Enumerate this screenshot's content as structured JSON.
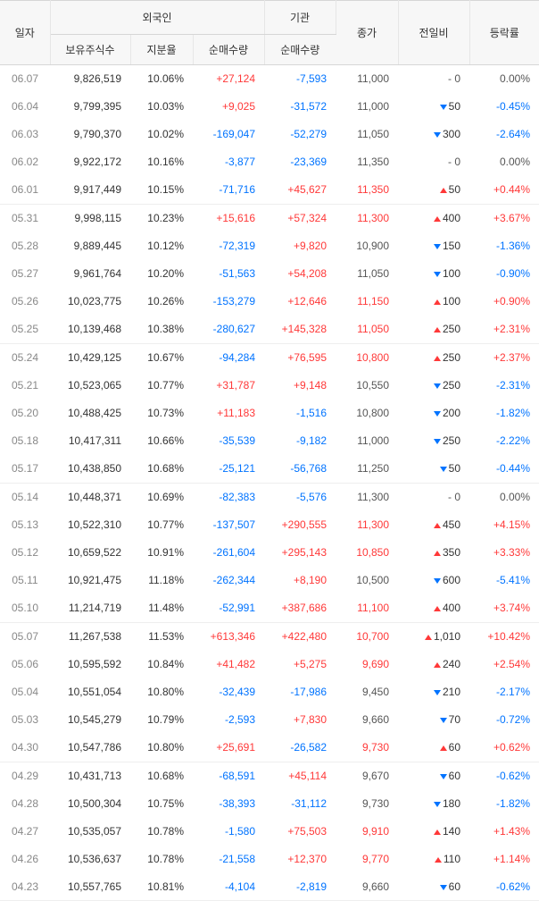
{
  "headers": {
    "date": "일자",
    "foreign": "외국인",
    "inst": "기관",
    "close": "종가",
    "change": "전일비",
    "rate": "등락률",
    "hold": "보유주식수",
    "ratio": "지분율",
    "net": "순매수량",
    "net2": "순매수량"
  },
  "groups": [
    [
      {
        "date": "06.07",
        "hold": "9,826,519",
        "ratio": "10.06%",
        "n1": "+27,124",
        "n1c": "pos",
        "n2": "-7,593",
        "n2c": "neg",
        "close": "11,000",
        "cc": "flat",
        "chg": "0",
        "dir": "flat",
        "rate": "0.00%",
        "rc": "flat"
      },
      {
        "date": "06.04",
        "hold": "9,799,395",
        "ratio": "10.03%",
        "n1": "+9,025",
        "n1c": "pos",
        "n2": "-31,572",
        "n2c": "neg",
        "close": "11,000",
        "cc": "flat",
        "chg": "50",
        "dir": "down",
        "rate": "-0.45%",
        "rc": "neg"
      },
      {
        "date": "06.03",
        "hold": "9,790,370",
        "ratio": "10.02%",
        "n1": "-169,047",
        "n1c": "neg",
        "n2": "-52,279",
        "n2c": "neg",
        "close": "11,050",
        "cc": "flat",
        "chg": "300",
        "dir": "down",
        "rate": "-2.64%",
        "rc": "neg"
      },
      {
        "date": "06.02",
        "hold": "9,922,172",
        "ratio": "10.16%",
        "n1": "-3,877",
        "n1c": "neg",
        "n2": "-23,369",
        "n2c": "neg",
        "close": "11,350",
        "cc": "flat",
        "chg": "0",
        "dir": "flat",
        "rate": "0.00%",
        "rc": "flat"
      },
      {
        "date": "06.01",
        "hold": "9,917,449",
        "ratio": "10.15%",
        "n1": "-71,716",
        "n1c": "neg",
        "n2": "+45,627",
        "n2c": "pos",
        "close": "11,350",
        "cc": "pos",
        "chg": "50",
        "dir": "up",
        "rate": "+0.44%",
        "rc": "pos"
      }
    ],
    [
      {
        "date": "05.31",
        "hold": "9,998,115",
        "ratio": "10.23%",
        "n1": "+15,616",
        "n1c": "pos",
        "n2": "+57,324",
        "n2c": "pos",
        "close": "11,300",
        "cc": "pos",
        "chg": "400",
        "dir": "up",
        "rate": "+3.67%",
        "rc": "pos"
      },
      {
        "date": "05.28",
        "hold": "9,889,445",
        "ratio": "10.12%",
        "n1": "-72,319",
        "n1c": "neg",
        "n2": "+9,820",
        "n2c": "pos",
        "close": "10,900",
        "cc": "flat",
        "chg": "150",
        "dir": "down",
        "rate": "-1.36%",
        "rc": "neg"
      },
      {
        "date": "05.27",
        "hold": "9,961,764",
        "ratio": "10.20%",
        "n1": "-51,563",
        "n1c": "neg",
        "n2": "+54,208",
        "n2c": "pos",
        "close": "11,050",
        "cc": "flat",
        "chg": "100",
        "dir": "down",
        "rate": "-0.90%",
        "rc": "neg"
      },
      {
        "date": "05.26",
        "hold": "10,023,775",
        "ratio": "10.26%",
        "n1": "-153,279",
        "n1c": "neg",
        "n2": "+12,646",
        "n2c": "pos",
        "close": "11,150",
        "cc": "pos",
        "chg": "100",
        "dir": "up",
        "rate": "+0.90%",
        "rc": "pos"
      },
      {
        "date": "05.25",
        "hold": "10,139,468",
        "ratio": "10.38%",
        "n1": "-280,627",
        "n1c": "neg",
        "n2": "+145,328",
        "n2c": "pos",
        "close": "11,050",
        "cc": "pos",
        "chg": "250",
        "dir": "up",
        "rate": "+2.31%",
        "rc": "pos"
      }
    ],
    [
      {
        "date": "05.24",
        "hold": "10,429,125",
        "ratio": "10.67%",
        "n1": "-94,284",
        "n1c": "neg",
        "n2": "+76,595",
        "n2c": "pos",
        "close": "10,800",
        "cc": "pos",
        "chg": "250",
        "dir": "up",
        "rate": "+2.37%",
        "rc": "pos"
      },
      {
        "date": "05.21",
        "hold": "10,523,065",
        "ratio": "10.77%",
        "n1": "+31,787",
        "n1c": "pos",
        "n2": "+9,148",
        "n2c": "pos",
        "close": "10,550",
        "cc": "flat",
        "chg": "250",
        "dir": "down",
        "rate": "-2.31%",
        "rc": "neg"
      },
      {
        "date": "05.20",
        "hold": "10,488,425",
        "ratio": "10.73%",
        "n1": "+11,183",
        "n1c": "pos",
        "n2": "-1,516",
        "n2c": "neg",
        "close": "10,800",
        "cc": "flat",
        "chg": "200",
        "dir": "down",
        "rate": "-1.82%",
        "rc": "neg"
      },
      {
        "date": "05.18",
        "hold": "10,417,311",
        "ratio": "10.66%",
        "n1": "-35,539",
        "n1c": "neg",
        "n2": "-9,182",
        "n2c": "neg",
        "close": "11,000",
        "cc": "flat",
        "chg": "250",
        "dir": "down",
        "rate": "-2.22%",
        "rc": "neg"
      },
      {
        "date": "05.17",
        "hold": "10,438,850",
        "ratio": "10.68%",
        "n1": "-25,121",
        "n1c": "neg",
        "n2": "-56,768",
        "n2c": "neg",
        "close": "11,250",
        "cc": "flat",
        "chg": "50",
        "dir": "down",
        "rate": "-0.44%",
        "rc": "neg"
      }
    ],
    [
      {
        "date": "05.14",
        "hold": "10,448,371",
        "ratio": "10.69%",
        "n1": "-82,383",
        "n1c": "neg",
        "n2": "-5,576",
        "n2c": "neg",
        "close": "11,300",
        "cc": "flat",
        "chg": "0",
        "dir": "flat",
        "rate": "0.00%",
        "rc": "flat"
      },
      {
        "date": "05.13",
        "hold": "10,522,310",
        "ratio": "10.77%",
        "n1": "-137,507",
        "n1c": "neg",
        "n2": "+290,555",
        "n2c": "pos",
        "close": "11,300",
        "cc": "pos",
        "chg": "450",
        "dir": "up",
        "rate": "+4.15%",
        "rc": "pos"
      },
      {
        "date": "05.12",
        "hold": "10,659,522",
        "ratio": "10.91%",
        "n1": "-261,604",
        "n1c": "neg",
        "n2": "+295,143",
        "n2c": "pos",
        "close": "10,850",
        "cc": "pos",
        "chg": "350",
        "dir": "up",
        "rate": "+3.33%",
        "rc": "pos"
      },
      {
        "date": "05.11",
        "hold": "10,921,475",
        "ratio": "11.18%",
        "n1": "-262,344",
        "n1c": "neg",
        "n2": "+8,190",
        "n2c": "pos",
        "close": "10,500",
        "cc": "flat",
        "chg": "600",
        "dir": "down",
        "rate": "-5.41%",
        "rc": "neg"
      },
      {
        "date": "05.10",
        "hold": "11,214,719",
        "ratio": "11.48%",
        "n1": "-52,991",
        "n1c": "neg",
        "n2": "+387,686",
        "n2c": "pos",
        "close": "11,100",
        "cc": "pos",
        "chg": "400",
        "dir": "up",
        "rate": "+3.74%",
        "rc": "pos"
      }
    ],
    [
      {
        "date": "05.07",
        "hold": "11,267,538",
        "ratio": "11.53%",
        "n1": "+613,346",
        "n1c": "pos",
        "n2": "+422,480",
        "n2c": "pos",
        "close": "10,700",
        "cc": "pos",
        "chg": "1,010",
        "dir": "up",
        "rate": "+10.42%",
        "rc": "pos"
      },
      {
        "date": "05.06",
        "hold": "10,595,592",
        "ratio": "10.84%",
        "n1": "+41,482",
        "n1c": "pos",
        "n2": "+5,275",
        "n2c": "pos",
        "close": "9,690",
        "cc": "pos",
        "chg": "240",
        "dir": "up",
        "rate": "+2.54%",
        "rc": "pos"
      },
      {
        "date": "05.04",
        "hold": "10,551,054",
        "ratio": "10.80%",
        "n1": "-32,439",
        "n1c": "neg",
        "n2": "-17,986",
        "n2c": "neg",
        "close": "9,450",
        "cc": "flat",
        "chg": "210",
        "dir": "down",
        "rate": "-2.17%",
        "rc": "neg"
      },
      {
        "date": "05.03",
        "hold": "10,545,279",
        "ratio": "10.79%",
        "n1": "-2,593",
        "n1c": "neg",
        "n2": "+7,830",
        "n2c": "pos",
        "close": "9,660",
        "cc": "flat",
        "chg": "70",
        "dir": "down",
        "rate": "-0.72%",
        "rc": "neg"
      },
      {
        "date": "04.30",
        "hold": "10,547,786",
        "ratio": "10.80%",
        "n1": "+25,691",
        "n1c": "pos",
        "n2": "-26,582",
        "n2c": "neg",
        "close": "9,730",
        "cc": "pos",
        "chg": "60",
        "dir": "up",
        "rate": "+0.62%",
        "rc": "pos"
      }
    ],
    [
      {
        "date": "04.29",
        "hold": "10,431,713",
        "ratio": "10.68%",
        "n1": "-68,591",
        "n1c": "neg",
        "n2": "+45,114",
        "n2c": "pos",
        "close": "9,670",
        "cc": "flat",
        "chg": "60",
        "dir": "down",
        "rate": "-0.62%",
        "rc": "neg"
      },
      {
        "date": "04.28",
        "hold": "10,500,304",
        "ratio": "10.75%",
        "n1": "-38,393",
        "n1c": "neg",
        "n2": "-31,112",
        "n2c": "neg",
        "close": "9,730",
        "cc": "flat",
        "chg": "180",
        "dir": "down",
        "rate": "-1.82%",
        "rc": "neg"
      },
      {
        "date": "04.27",
        "hold": "10,535,057",
        "ratio": "10.78%",
        "n1": "-1,580",
        "n1c": "neg",
        "n2": "+75,503",
        "n2c": "pos",
        "close": "9,910",
        "cc": "pos",
        "chg": "140",
        "dir": "up",
        "rate": "+1.43%",
        "rc": "pos"
      },
      {
        "date": "04.26",
        "hold": "10,536,637",
        "ratio": "10.78%",
        "n1": "-21,558",
        "n1c": "neg",
        "n2": "+12,370",
        "n2c": "pos",
        "close": "9,770",
        "cc": "pos",
        "chg": "110",
        "dir": "up",
        "rate": "+1.14%",
        "rc": "pos"
      },
      {
        "date": "04.23",
        "hold": "10,557,765",
        "ratio": "10.81%",
        "n1": "-4,104",
        "n1c": "neg",
        "n2": "-2,819",
        "n2c": "neg",
        "close": "9,660",
        "cc": "flat",
        "chg": "60",
        "dir": "down",
        "rate": "-0.62%",
        "rc": "neg"
      }
    ]
  ]
}
